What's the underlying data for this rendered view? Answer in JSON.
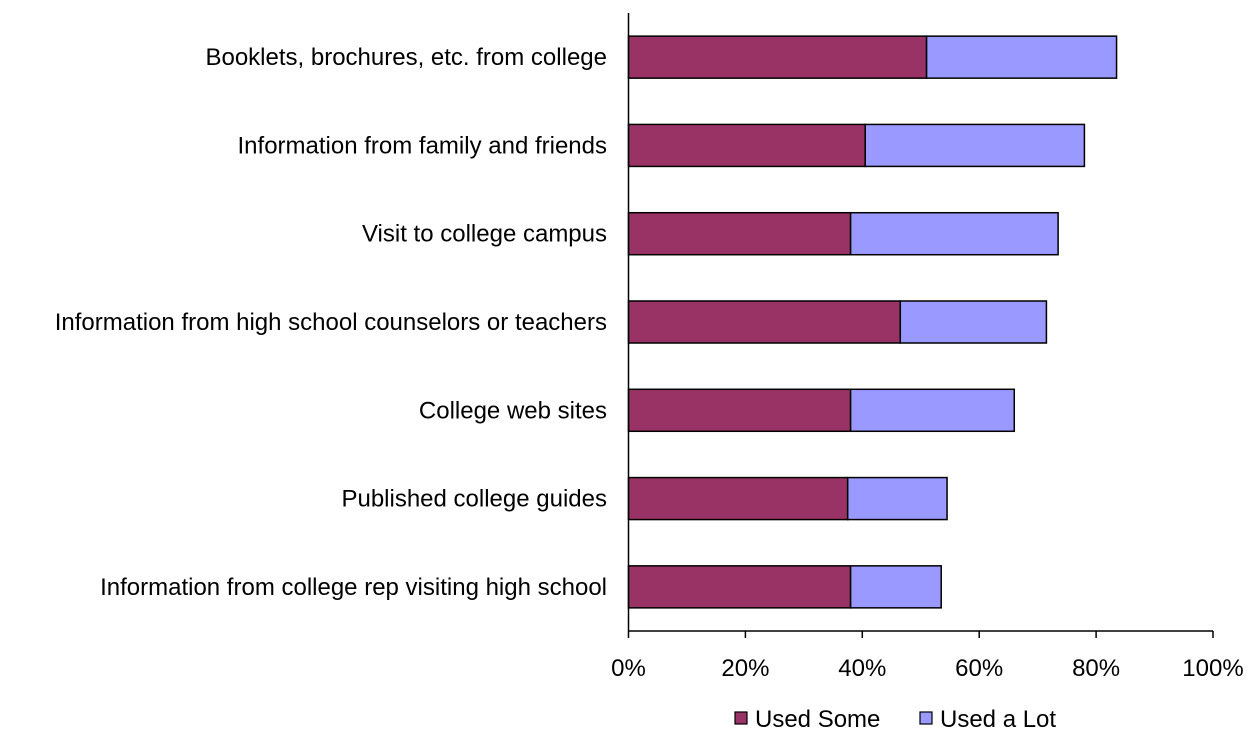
{
  "chart_data": {
    "type": "bar",
    "orientation": "horizontal",
    "stacked": true,
    "categories": [
      "Booklets, brochures, etc. from college",
      "Information from family and friends",
      "Visit to college campus",
      "Information from high school counselors or teachers",
      "College web sites",
      "Published college guides",
      "Information from college rep visiting high school"
    ],
    "series": [
      {
        "name": "Used Some",
        "color": "#993366",
        "values": [
          51,
          40.5,
          38,
          46.5,
          38,
          37.5,
          38
        ]
      },
      {
        "name": "Used a Lot",
        "color": "#9999ff",
        "values": [
          32.5,
          37.5,
          35.5,
          25,
          28,
          17,
          15.5
        ]
      }
    ],
    "xlim": [
      0,
      100
    ],
    "xticks": [
      "0%",
      "20%",
      "40%",
      "60%",
      "80%",
      "100%"
    ],
    "grid": false,
    "legend_position": "bottom"
  }
}
